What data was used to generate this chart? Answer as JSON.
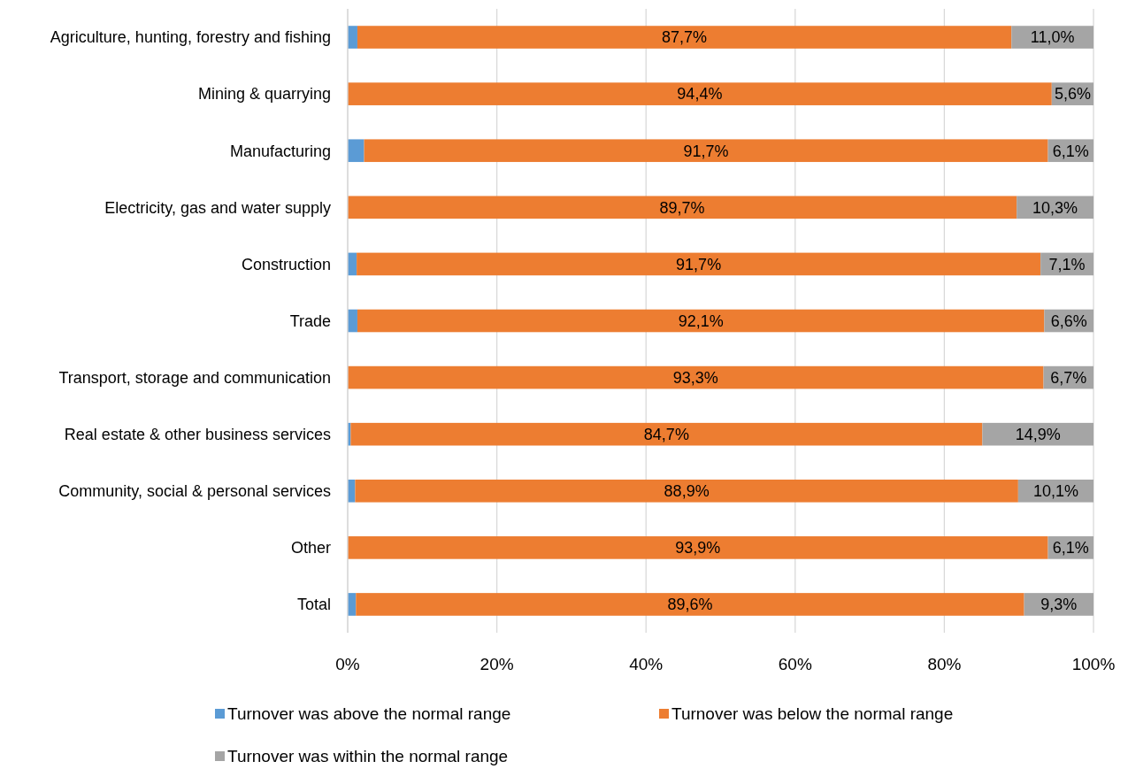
{
  "chart_data": {
    "type": "bar",
    "orientation": "horizontal",
    "stacked": true,
    "categories": [
      "Agriculture, hunting, forestry and fishing",
      "Mining & quarrying",
      "Manufacturing",
      "Electricity, gas and water supply",
      "Construction",
      "Trade",
      "Transport, storage and communication",
      "Real estate & other business services",
      "Community, social & personal services",
      "Other",
      "Total"
    ],
    "series": [
      {
        "name": "Turnover was above the normal range",
        "color": "#5b9bd5",
        "values": [
          1.3,
          0,
          2.2,
          0,
          1.2,
          1.3,
          0,
          0.4,
          1.0,
          0,
          1.1
        ],
        "value_labels": [
          null,
          null,
          null,
          null,
          null,
          null,
          null,
          null,
          null,
          null,
          null
        ]
      },
      {
        "name": "Turnover was below the normal range",
        "color": "#ed7d31",
        "values": [
          87.7,
          94.4,
          91.7,
          89.7,
          91.7,
          92.1,
          93.3,
          84.7,
          88.9,
          93.9,
          89.6
        ],
        "value_labels": [
          "87,7%",
          "94,4%",
          "91,7%",
          "89,7%",
          "91,7%",
          "92,1%",
          "93,3%",
          "84,7%",
          "88,9%",
          "93,9%",
          "89,6%"
        ]
      },
      {
        "name": "Turnover was within the normal range",
        "color": "#a5a5a5",
        "values": [
          11.0,
          5.6,
          6.1,
          10.3,
          7.1,
          6.6,
          6.7,
          14.9,
          10.1,
          6.1,
          9.3
        ],
        "value_labels": [
          "11,0%",
          "5,6%",
          "6,1%",
          "10,3%",
          "7,1%",
          "6,6%",
          "6,7%",
          "14,9%",
          "10,1%",
          "6,1%",
          "9,3%"
        ]
      }
    ],
    "xlim": [
      0,
      100
    ],
    "xticks": [
      {
        "value": 0,
        "label": "0%"
      },
      {
        "value": 20,
        "label": "20%"
      },
      {
        "value": 40,
        "label": "40%"
      },
      {
        "value": 60,
        "label": "60%"
      },
      {
        "value": 80,
        "label": "80%"
      },
      {
        "value": 100,
        "label": "100%"
      }
    ],
    "grid": "x",
    "legend": "bottom"
  }
}
